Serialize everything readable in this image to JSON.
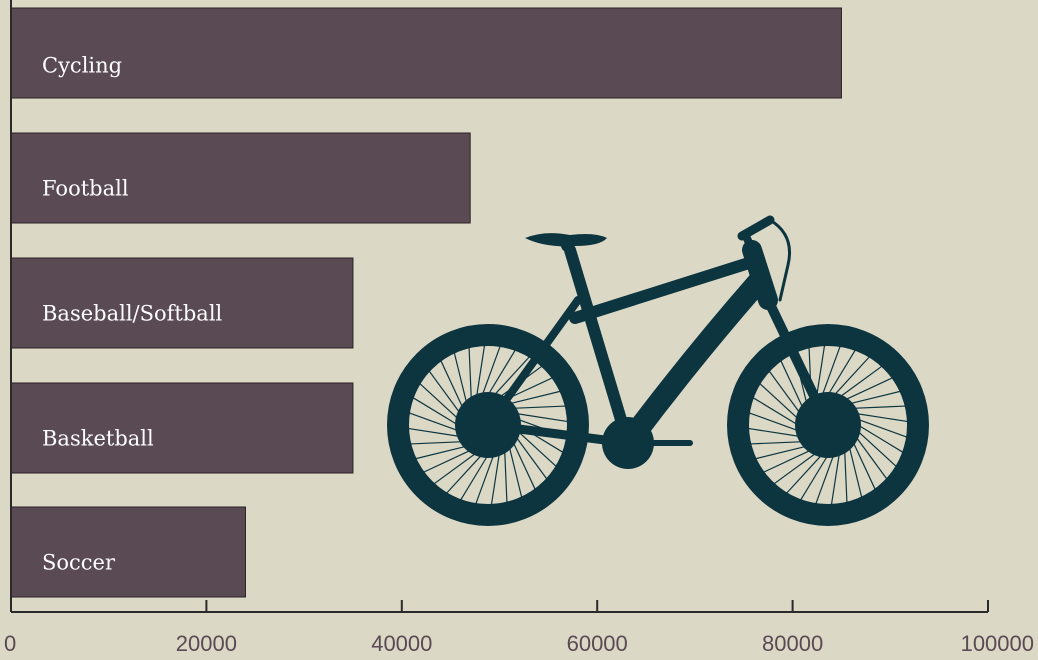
{
  "chart_data": {
    "type": "bar",
    "orientation": "horizontal",
    "categories": [
      "Cycling",
      "Football",
      "Baseball/Softball",
      "Basketball",
      "Soccer"
    ],
    "values": [
      85000,
      47000,
      35000,
      35000,
      24000
    ],
    "color": "#5a4a53",
    "xlim": [
      0,
      100000
    ],
    "xticks": [
      0,
      20000,
      40000,
      60000,
      80000,
      100000
    ]
  }
}
